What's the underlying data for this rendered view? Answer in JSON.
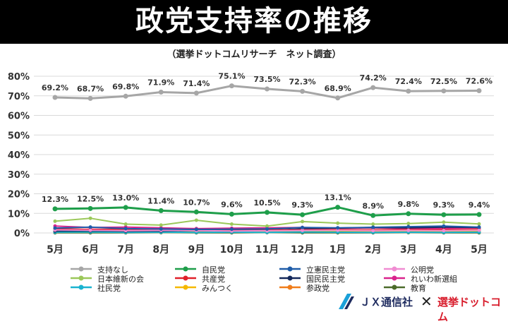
{
  "header": {
    "title": "政党支持率の推移"
  },
  "chart_data": {
    "type": "line",
    "subtitle": "（選挙ドットコムリサーチ　ネット調査）",
    "categories": [
      "5月",
      "6月",
      "7月",
      "8月",
      "9月",
      "10月",
      "11月",
      "12月",
      "1月",
      "2月",
      "3月",
      "4月",
      "5月"
    ],
    "ylim": [
      0,
      80
    ],
    "yticks": [
      "0%",
      "10%",
      "20%",
      "30%",
      "40%",
      "50%",
      "60%",
      "70%",
      "80%"
    ],
    "ytick_values": [
      0,
      10,
      20,
      30,
      40,
      50,
      60,
      70,
      80
    ],
    "grid": true,
    "series": [
      {
        "name": "支持なし",
        "color": "#a6a6a6",
        "values": [
          69.2,
          68.7,
          69.8,
          71.9,
          71.4,
          75.1,
          73.5,
          72.3,
          68.9,
          74.2,
          72.4,
          72.5,
          72.6
        ],
        "labels": [
          "69.2%",
          "68.7%",
          "69.8%",
          "71.9%",
          "71.4%",
          "75.1%",
          "73.5%",
          "72.3%",
          "68.9%",
          "74.2%",
          "72.4%",
          "72.5%",
          "72.6%"
        ]
      },
      {
        "name": "自民党",
        "color": "#1e9e4a",
        "values": [
          12.3,
          12.5,
          13.0,
          11.4,
          10.7,
          9.6,
          10.5,
          9.3,
          13.1,
          8.9,
          9.8,
          9.3,
          9.4
        ],
        "labels": [
          "12.3%",
          "12.5%",
          "13.0%",
          "11.4%",
          "10.7%",
          "9.6%",
          "10.5%",
          "9.3%",
          "13.1%",
          "8.9%",
          "9.8%",
          "9.3%",
          "9.4%"
        ]
      },
      {
        "name": "立憲民主党",
        "color": "#1f5ca8",
        "values": [
          2.5,
          3.0,
          2.2,
          2.0,
          1.8,
          1.9,
          2.0,
          2.8,
          2.6,
          2.9,
          3.2,
          3.5,
          3.0
        ]
      },
      {
        "name": "公明党",
        "color": "#f08cd2",
        "values": [
          1.5,
          1.4,
          1.2,
          1.3,
          1.2,
          1.0,
          1.1,
          1.3,
          1.4,
          1.2,
          1.3,
          1.2,
          1.4
        ]
      },
      {
        "name": "日本維新の会",
        "color": "#9bc85a",
        "values": [
          6.0,
          7.5,
          4.5,
          4.0,
          6.5,
          4.5,
          3.5,
          5.8,
          5.0,
          4.5,
          4.8,
          5.5,
          4.6
        ]
      },
      {
        "name": "共産党",
        "color": "#e0202a",
        "values": [
          2.0,
          1.8,
          1.9,
          1.6,
          1.5,
          1.7,
          1.5,
          1.6,
          1.8,
          1.5,
          1.7,
          1.6,
          1.5
        ]
      },
      {
        "name": "国民民主党",
        "color": "#14285a",
        "values": [
          1.0,
          1.1,
          0.9,
          1.0,
          1.2,
          1.0,
          1.4,
          2.0,
          2.5,
          2.8,
          2.6,
          3.0,
          2.8
        ]
      },
      {
        "name": "れいわ新選組",
        "color": "#d9238c",
        "values": [
          3.5,
          2.8,
          3.0,
          2.6,
          2.2,
          2.4,
          2.6,
          2.8,
          2.4,
          2.6,
          2.2,
          2.3,
          2.5
        ]
      },
      {
        "name": "社民党",
        "color": "#1ab3d0",
        "values": [
          0.4,
          0.5,
          0.3,
          0.4,
          0.3,
          0.4,
          0.3,
          0.5,
          0.4,
          0.3,
          0.4,
          0.3,
          0.4
        ]
      },
      {
        "name": "みんつく",
        "color": "#f5b800",
        "values": [
          0.8,
          0.9,
          1.0,
          0.8,
          0.9,
          1.0,
          0.8,
          0.7,
          0.9,
          0.8,
          0.9,
          0.8,
          0.9
        ]
      },
      {
        "name": "参政党",
        "color": "#f07d1a",
        "values": [
          0.6,
          0.7,
          0.8,
          0.7,
          0.9,
          0.8,
          1.0,
          1.2,
          1.4,
          1.5,
          1.7,
          1.6,
          1.8
        ]
      },
      {
        "name": "教育",
        "color": "#4b6b2a",
        "values": [
          0.1,
          0.1,
          0.1,
          0.2,
          0.1,
          0.1,
          0.2,
          0.1,
          0.1,
          0.1,
          0.2,
          0.1,
          0.1
        ]
      }
    ],
    "legend": [
      "支持なし",
      "自民党",
      "立憲民主党",
      "公明党",
      "日本維新の会",
      "共産党",
      "国民民主党",
      "れいわ新選組",
      "社民党",
      "みんつく",
      "参政党",
      "教育"
    ]
  },
  "branding": {
    "jx": "ＪＸ通信社",
    "x": "✕",
    "senkyo": "選挙ドットコム"
  }
}
